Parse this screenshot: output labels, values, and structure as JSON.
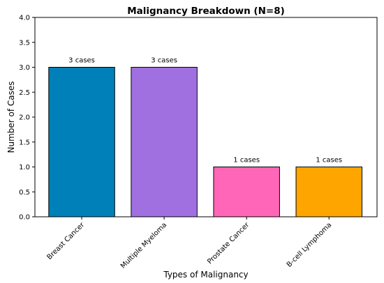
{
  "chart_data": {
    "type": "bar",
    "title": "Malignancy Breakdown (N=8)",
    "xlabel": "Types of Malignancy",
    "ylabel": "Number of Cases",
    "categories": [
      "Breast Cancer",
      "Multiple Myeloma",
      "Prostate Cancer",
      "B-cell Lymphoma"
    ],
    "values": [
      3,
      3,
      1,
      1
    ],
    "data_labels": [
      "3 cases",
      "3 cases",
      "1 cases",
      "1 cases"
    ],
    "colors": [
      "#0080b8",
      "#a070e0",
      "#ff66b8",
      "#ffa500"
    ],
    "ylim": [
      0,
      4.0
    ],
    "yticks": [
      "0.0",
      "0.5",
      "1.0",
      "1.5",
      "2.0",
      "2.5",
      "3.0",
      "3.5",
      "4.0"
    ],
    "grid": false,
    "legend": "none"
  }
}
